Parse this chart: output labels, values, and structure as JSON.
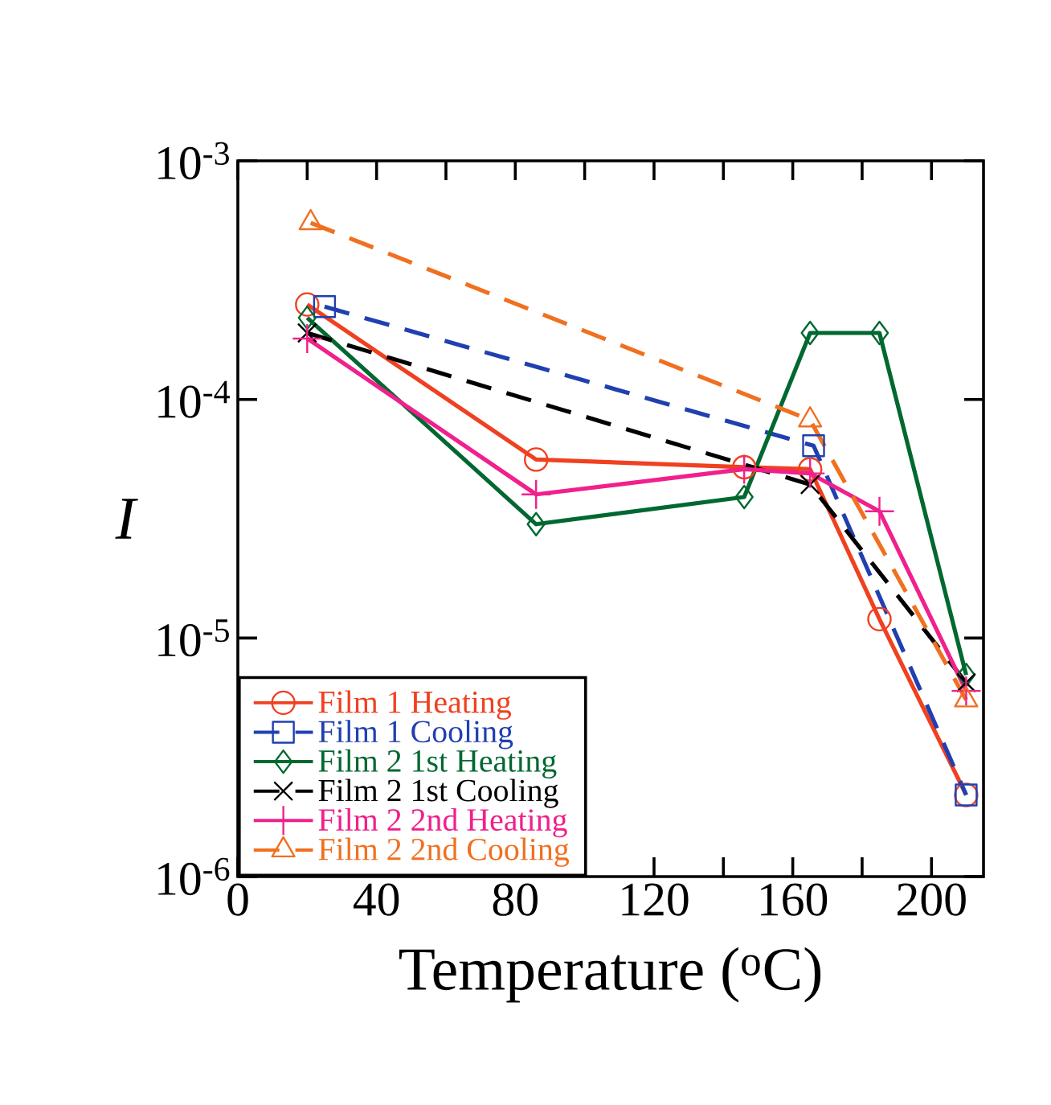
{
  "chart_data": {
    "type": "line",
    "xlabel": "Temperature ($^{o}$C)",
    "ylabel": "I",
    "xlim": [
      0,
      215
    ],
    "xticks": [
      0,
      {
        "value": 20,
        "label": null
      },
      40,
      {
        "value": 60,
        "label": null
      },
      80,
      {
        "value": 100,
        "label": null
      },
      120,
      {
        "value": 140,
        "label": null
      },
      160,
      {
        "value": 180,
        "label": null
      },
      200
    ],
    "ylim": [
      1e-06,
      0.001
    ],
    "yticks": [
      {
        "value": 1e-06,
        "label": "10$^{-6}$"
      },
      {
        "value": 1e-05,
        "label": "10$^{-5}$"
      },
      {
        "value": 0.0001,
        "label": "10$^{-4}$"
      },
      {
        "value": 0.001,
        "label": "10$^{-3}$"
      }
    ],
    "log": "y",
    "legend": "bottom left",
    "series": [
      {
        "name": "Film 1 Heating",
        "color": "#f04020",
        "marker": "circle",
        "line_style": "solid",
        "x": [
          20,
          86,
          146,
          165,
          185,
          210
        ],
        "values": [
          0.00025,
          5.6e-05,
          5.2e-05,
          5.1e-05,
          1.2e-05,
          2.2e-06
        ]
      },
      {
        "name": "Film 1 Cooling",
        "color": "#2040b0",
        "marker": "square",
        "line_style": "dashed",
        "x": [
          25,
          166,
          210
        ],
        "values": [
          0.000245,
          6.4e-05,
          2.2e-06
        ]
      },
      {
        "name": "Film 2 1st Heating",
        "color": "#006830",
        "marker": "diamond",
        "line_style": "solid",
        "x": [
          20,
          86,
          146,
          165,
          185,
          210
        ],
        "values": [
          0.00022,
          3e-05,
          3.9e-05,
          0.00019,
          0.00019,
          7e-06
        ]
      },
      {
        "name": "Film 2 1st Cooling",
        "color": "#000000",
        "marker": "cross",
        "line_style": "dashed",
        "x": [
          20,
          165,
          210
        ],
        "values": [
          0.00019,
          4.4e-05,
          6.5e-06
        ]
      },
      {
        "name": "Film 2 2nd Heating",
        "color": "#f0208c",
        "marker": "plus",
        "line_style": "solid",
        "x": [
          20,
          86,
          146,
          165,
          185,
          210
        ],
        "values": [
          0.00018,
          4e-05,
          5.1e-05,
          4.9e-05,
          3.4e-05,
          6e-06
        ]
      },
      {
        "name": "Film 2 2nd Cooling",
        "color": "#f07020",
        "marker": "triangle",
        "line_style": "dashed",
        "x": [
          21,
          165,
          210
        ],
        "values": [
          0.00055,
          8.2e-05,
          5.5e-06
        ]
      }
    ]
  }
}
